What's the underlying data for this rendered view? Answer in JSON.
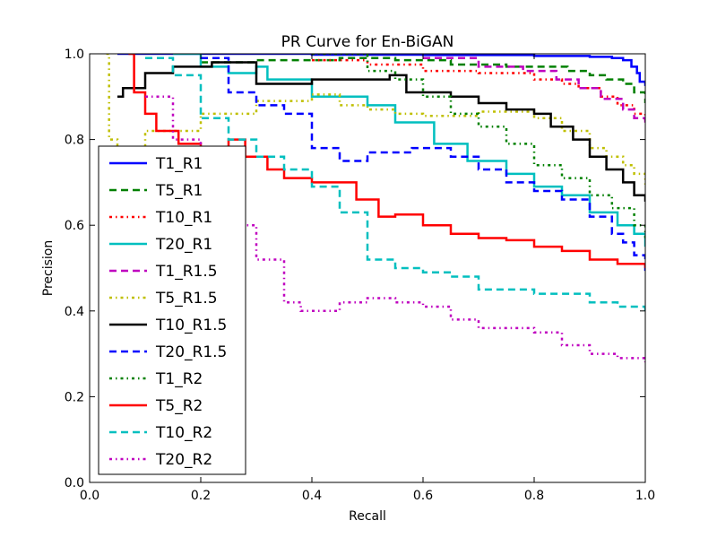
{
  "chart_data": {
    "type": "line",
    "title": "PR Curve for En-BiGAN",
    "xlabel": "Recall",
    "ylabel": "Precision",
    "xlim": [
      0.0,
      1.0
    ],
    "ylim": [
      0.0,
      1.0
    ],
    "xticks": [
      "0.0",
      "0.2",
      "0.4",
      "0.6",
      "0.8",
      "1.0"
    ],
    "yticks": [
      "0.0",
      "0.2",
      "0.4",
      "0.6",
      "0.8",
      "1.0"
    ],
    "grid": false,
    "legend_position": "lower-left",
    "series": [
      {
        "name": "T1_R1",
        "color": "#0000ff",
        "dash": "solid",
        "points": [
          [
            0.05,
            1.0
          ],
          [
            0.2,
            1.0
          ],
          [
            0.4,
            0.998
          ],
          [
            0.6,
            0.997
          ],
          [
            0.8,
            0.995
          ],
          [
            0.9,
            0.993
          ],
          [
            0.94,
            0.99
          ],
          [
            0.96,
            0.985
          ],
          [
            0.975,
            0.97
          ],
          [
            0.985,
            0.955
          ],
          [
            0.99,
            0.935
          ],
          [
            1.0,
            0.925
          ]
        ]
      },
      {
        "name": "T5_R1",
        "color": "#008000",
        "dash": "dashed",
        "points": [
          [
            0.2,
            0.98
          ],
          [
            0.3,
            0.985
          ],
          [
            0.45,
            0.99
          ],
          [
            0.55,
            0.985
          ],
          [
            0.65,
            0.975
          ],
          [
            0.75,
            0.97
          ],
          [
            0.82,
            0.97
          ],
          [
            0.86,
            0.96
          ],
          [
            0.9,
            0.95
          ],
          [
            0.93,
            0.94
          ],
          [
            0.96,
            0.93
          ],
          [
            0.98,
            0.91
          ],
          [
            1.0,
            0.885
          ]
        ]
      },
      {
        "name": "T10_R1",
        "color": "#ff0000",
        "dash": "dashdot",
        "points": [
          [
            0.4,
            0.985
          ],
          [
            0.5,
            0.975
          ],
          [
            0.6,
            0.96
          ],
          [
            0.7,
            0.955
          ],
          [
            0.8,
            0.94
          ],
          [
            0.85,
            0.93
          ],
          [
            0.88,
            0.92
          ],
          [
            0.92,
            0.9
          ],
          [
            0.95,
            0.88
          ],
          [
            0.98,
            0.86
          ],
          [
            1.0,
            0.845
          ]
        ]
      },
      {
        "name": "T20_R1",
        "color": "#00bfbf",
        "dash": "solid",
        "points": [
          [
            0.15,
            1.0
          ],
          [
            0.2,
            0.97
          ],
          [
            0.25,
            0.955
          ],
          [
            0.3,
            0.97
          ],
          [
            0.32,
            0.94
          ],
          [
            0.4,
            0.9
          ],
          [
            0.5,
            0.88
          ],
          [
            0.55,
            0.84
          ],
          [
            0.62,
            0.79
          ],
          [
            0.68,
            0.75
          ],
          [
            0.75,
            0.72
          ],
          [
            0.8,
            0.69
          ],
          [
            0.85,
            0.67
          ],
          [
            0.9,
            0.63
          ],
          [
            0.95,
            0.6
          ],
          [
            0.98,
            0.58
          ],
          [
            1.0,
            0.55
          ]
        ]
      },
      {
        "name": "T1_R1.5",
        "color": "#bf00bf",
        "dash": "dashed",
        "points": [
          [
            0.6,
            0.99
          ],
          [
            0.7,
            0.97
          ],
          [
            0.78,
            0.96
          ],
          [
            0.84,
            0.94
          ],
          [
            0.88,
            0.92
          ],
          [
            0.92,
            0.895
          ],
          [
            0.96,
            0.87
          ],
          [
            0.98,
            0.85
          ],
          [
            1.0,
            0.835
          ]
        ]
      },
      {
        "name": "T5_R1.5",
        "color": "#bfbf00",
        "dash": "dashdot",
        "points": [
          [
            0.03,
            1.0
          ],
          [
            0.035,
            0.8
          ],
          [
            0.05,
            0.78
          ],
          [
            0.1,
            0.82
          ],
          [
            0.2,
            0.86
          ],
          [
            0.3,
            0.89
          ],
          [
            0.4,
            0.905
          ],
          [
            0.45,
            0.88
          ],
          [
            0.5,
            0.87
          ],
          [
            0.55,
            0.86
          ],
          [
            0.6,
            0.855
          ],
          [
            0.7,
            0.865
          ],
          [
            0.8,
            0.85
          ],
          [
            0.85,
            0.82
          ],
          [
            0.9,
            0.78
          ],
          [
            0.93,
            0.76
          ],
          [
            0.96,
            0.74
          ],
          [
            0.98,
            0.72
          ],
          [
            1.0,
            0.695
          ]
        ]
      },
      {
        "name": "T10_R1.5",
        "color": "#000000",
        "dash": "solid",
        "points": [
          [
            0.05,
            0.9
          ],
          [
            0.06,
            0.92
          ],
          [
            0.1,
            0.955
          ],
          [
            0.15,
            0.97
          ],
          [
            0.22,
            0.98
          ],
          [
            0.3,
            0.93
          ],
          [
            0.4,
            0.94
          ],
          [
            0.54,
            0.95
          ],
          [
            0.57,
            0.91
          ],
          [
            0.65,
            0.9
          ],
          [
            0.7,
            0.885
          ],
          [
            0.75,
            0.87
          ],
          [
            0.8,
            0.86
          ],
          [
            0.83,
            0.83
          ],
          [
            0.87,
            0.8
          ],
          [
            0.9,
            0.76
          ],
          [
            0.93,
            0.73
          ],
          [
            0.96,
            0.7
          ],
          [
            0.98,
            0.67
          ],
          [
            1.0,
            0.655
          ]
        ]
      },
      {
        "name": "T20_R1.5",
        "color": "#0000ff",
        "dash": "dashed",
        "points": [
          [
            0.2,
            0.99
          ],
          [
            0.25,
            0.91
          ],
          [
            0.3,
            0.88
          ],
          [
            0.35,
            0.86
          ],
          [
            0.4,
            0.78
          ],
          [
            0.45,
            0.75
          ],
          [
            0.5,
            0.77
          ],
          [
            0.58,
            0.78
          ],
          [
            0.65,
            0.76
          ],
          [
            0.7,
            0.73
          ],
          [
            0.75,
            0.7
          ],
          [
            0.8,
            0.68
          ],
          [
            0.85,
            0.66
          ],
          [
            0.9,
            0.62
          ],
          [
            0.94,
            0.58
          ],
          [
            0.96,
            0.56
          ],
          [
            0.98,
            0.53
          ],
          [
            1.0,
            0.49
          ]
        ]
      },
      {
        "name": "T1_R2",
        "color": "#008000",
        "dash": "dashdot",
        "points": [
          [
            0.4,
            1.0
          ],
          [
            0.5,
            0.96
          ],
          [
            0.55,
            0.94
          ],
          [
            0.6,
            0.9
          ],
          [
            0.65,
            0.86
          ],
          [
            0.7,
            0.83
          ],
          [
            0.75,
            0.79
          ],
          [
            0.8,
            0.74
          ],
          [
            0.85,
            0.71
          ],
          [
            0.9,
            0.67
          ],
          [
            0.94,
            0.64
          ],
          [
            0.98,
            0.6
          ],
          [
            1.0,
            0.57
          ]
        ]
      },
      {
        "name": "T5_R2",
        "color": "#ff0000",
        "dash": "solid",
        "points": [
          [
            0.07,
            1.0
          ],
          [
            0.08,
            0.91
          ],
          [
            0.1,
            0.86
          ],
          [
            0.12,
            0.82
          ],
          [
            0.16,
            0.79
          ],
          [
            0.2,
            0.78
          ],
          [
            0.25,
            0.8
          ],
          [
            0.28,
            0.76
          ],
          [
            0.32,
            0.73
          ],
          [
            0.35,
            0.71
          ],
          [
            0.4,
            0.7
          ],
          [
            0.48,
            0.66
          ],
          [
            0.52,
            0.62
          ],
          [
            0.55,
            0.625
          ],
          [
            0.6,
            0.6
          ],
          [
            0.65,
            0.58
          ],
          [
            0.7,
            0.57
          ],
          [
            0.75,
            0.565
          ],
          [
            0.8,
            0.55
          ],
          [
            0.85,
            0.54
          ],
          [
            0.9,
            0.52
          ],
          [
            0.95,
            0.51
          ],
          [
            1.0,
            0.5
          ]
        ]
      },
      {
        "name": "T10_R2",
        "color": "#00bfbf",
        "dash": "dashed",
        "points": [
          [
            0.1,
            0.99
          ],
          [
            0.15,
            0.95
          ],
          [
            0.2,
            0.85
          ],
          [
            0.25,
            0.8
          ],
          [
            0.3,
            0.76
          ],
          [
            0.35,
            0.73
          ],
          [
            0.4,
            0.69
          ],
          [
            0.45,
            0.63
          ],
          [
            0.5,
            0.52
          ],
          [
            0.55,
            0.5
          ],
          [
            0.6,
            0.49
          ],
          [
            0.65,
            0.48
          ],
          [
            0.7,
            0.45
          ],
          [
            0.8,
            0.44
          ],
          [
            0.9,
            0.42
          ],
          [
            0.95,
            0.41
          ],
          [
            1.0,
            0.4
          ]
        ]
      },
      {
        "name": "T20_R2",
        "color": "#bf00bf",
        "dash": "dashdot",
        "points": [
          [
            0.1,
            0.9
          ],
          [
            0.15,
            0.8
          ],
          [
            0.2,
            0.7
          ],
          [
            0.25,
            0.6
          ],
          [
            0.3,
            0.52
          ],
          [
            0.35,
            0.42
          ],
          [
            0.38,
            0.4
          ],
          [
            0.45,
            0.42
          ],
          [
            0.5,
            0.43
          ],
          [
            0.55,
            0.42
          ],
          [
            0.6,
            0.41
          ],
          [
            0.65,
            0.38
          ],
          [
            0.7,
            0.36
          ],
          [
            0.8,
            0.35
          ],
          [
            0.85,
            0.32
          ],
          [
            0.9,
            0.3
          ],
          [
            0.95,
            0.29
          ],
          [
            1.0,
            0.28
          ]
        ]
      }
    ]
  }
}
